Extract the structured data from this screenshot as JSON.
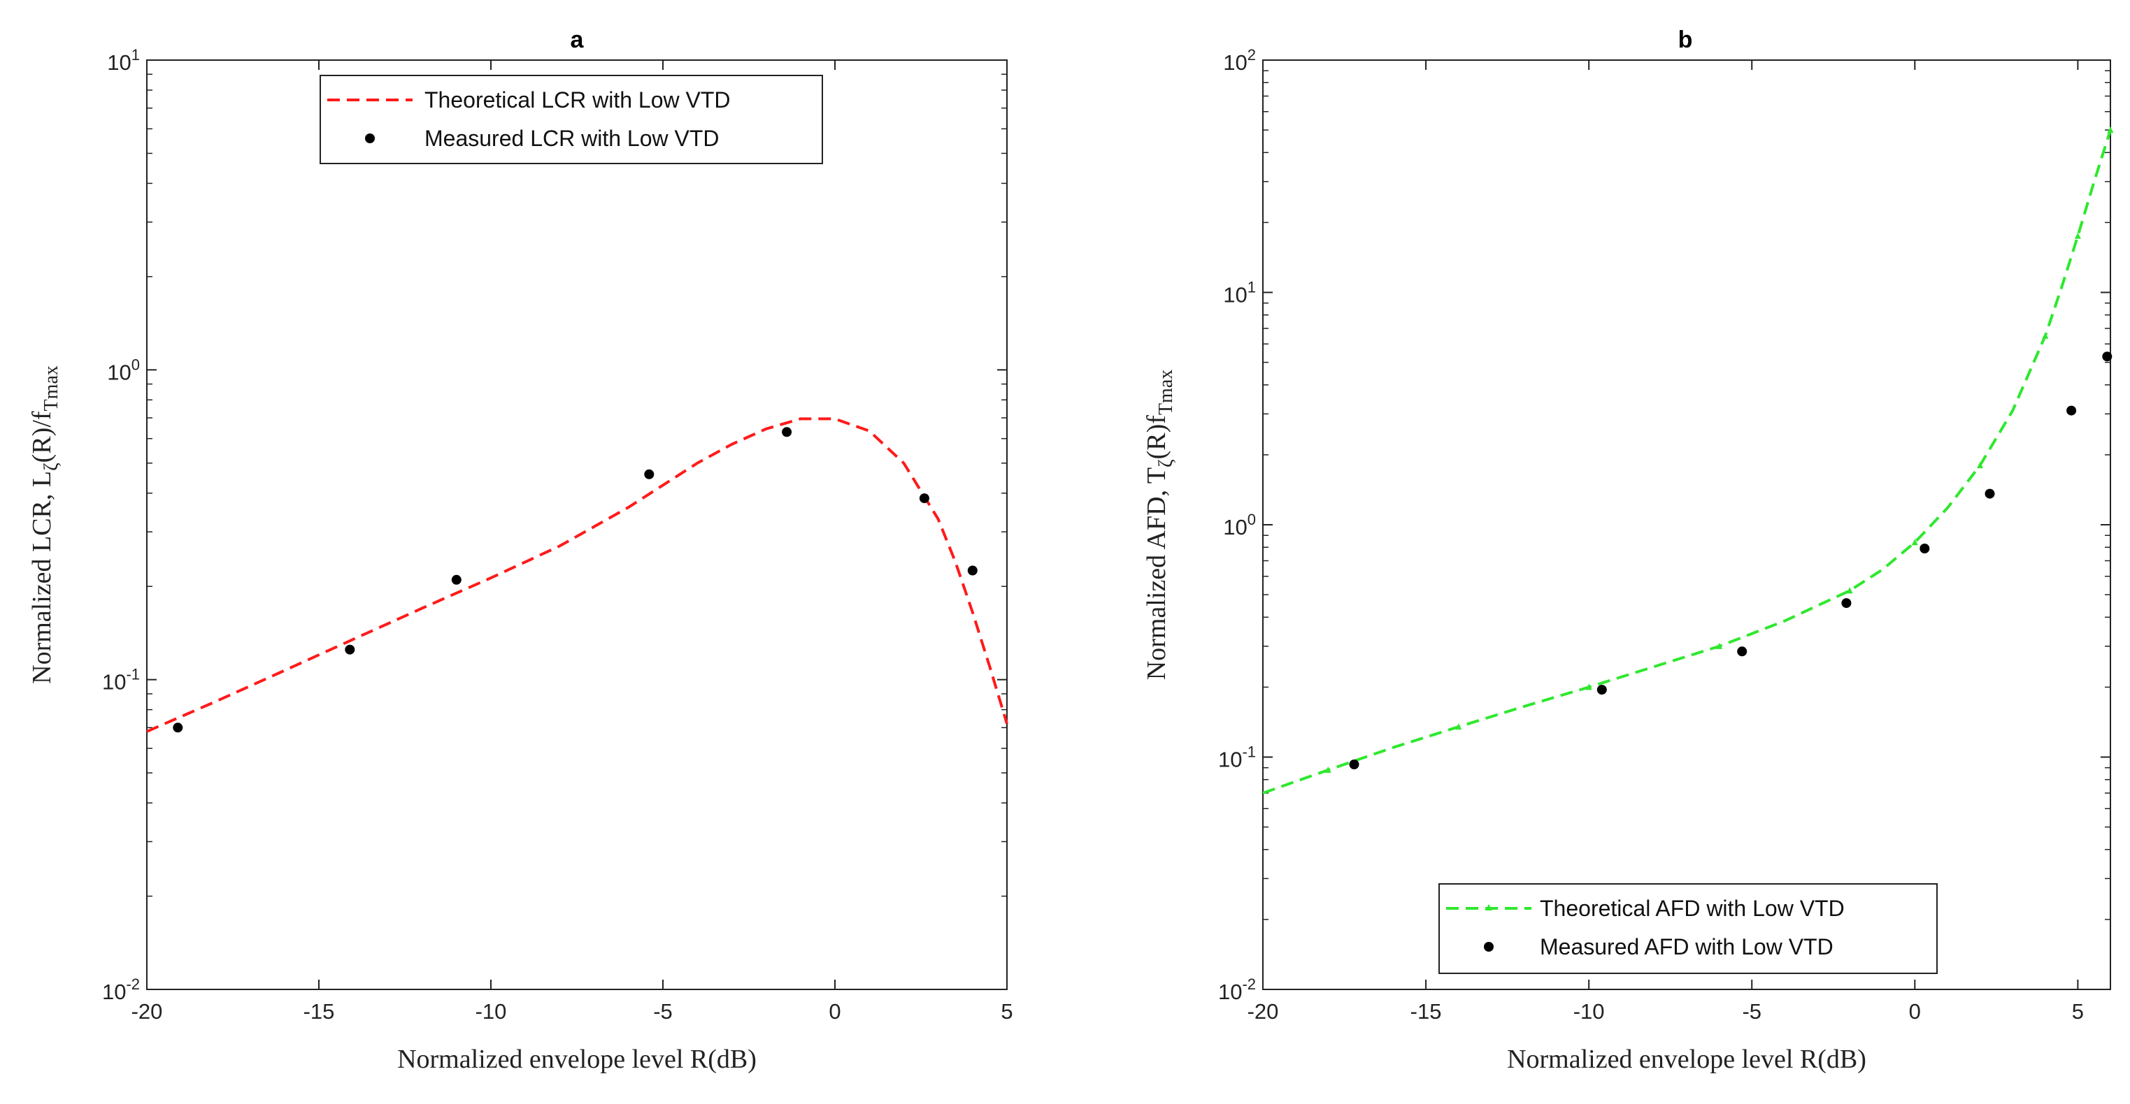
{
  "chart_data": [
    {
      "id": "a",
      "type": "line",
      "title": "a",
      "xlabel": "Normalized envelope level R(dB)",
      "ylabel": {
        "main": "Normalized LCR, L",
        "sub1": "ζ",
        "mid": "(R)/f",
        "sub2": "Tmax"
      },
      "xlim": [
        -20,
        5
      ],
      "ylim_log10": [
        -2,
        1
      ],
      "yscale": "log",
      "xticks": [
        -20,
        -15,
        -10,
        -5,
        0,
        5
      ],
      "xtick_labels": [
        "-20",
        "-15",
        "-10",
        "-5",
        "0",
        "5"
      ],
      "yticks": [
        {
          "base": "10",
          "exp": "-2"
        },
        {
          "base": "10",
          "exp": "-1"
        },
        {
          "base": "10",
          "exp": "0"
        },
        {
          "base": "10",
          "exp": "1"
        }
      ],
      "legend_position": "top-center",
      "series": [
        {
          "name": "Theoretical LCR with Low VTD",
          "style": "dashed-line",
          "color": "#ff1a1a",
          "x": [
            -20,
            -18,
            -16,
            -14,
            -12,
            -10,
            -8,
            -6,
            -4,
            -3,
            -2,
            -1,
            0,
            1,
            2,
            3,
            3.5,
            4,
            4.5,
            5
          ],
          "y": [
            0.068,
            0.085,
            0.107,
            0.135,
            0.17,
            0.213,
            0.27,
            0.36,
            0.5,
            0.575,
            0.645,
            0.695,
            0.695,
            0.635,
            0.5,
            0.33,
            0.24,
            0.165,
            0.11,
            0.072
          ]
        },
        {
          "name": "Measured LCR with Low VTD",
          "style": "markers",
          "color": "#000000",
          "x": [
            -19.1,
            -14.1,
            -11.0,
            -5.4,
            -1.4,
            2.6,
            4.0
          ],
          "y": [
            0.07,
            0.125,
            0.21,
            0.46,
            0.63,
            0.385,
            0.225
          ]
        }
      ]
    },
    {
      "id": "b",
      "type": "line",
      "title": "b",
      "xlabel": "Normalized envelope level R(dB)",
      "ylabel": {
        "main": "Normalized AFD, T",
        "sub1": "ζ",
        "mid": "(R)f",
        "sub2": "Tmax"
      },
      "xlim": [
        -20,
        6
      ],
      "ylim_log10": [
        -2,
        2
      ],
      "yscale": "log",
      "xticks": [
        -20,
        -15,
        -10,
        -5,
        0,
        5
      ],
      "xtick_labels": [
        "-20",
        "-15",
        "-10",
        "-5",
        "0",
        "5"
      ],
      "yticks": [
        {
          "base": "10",
          "exp": "-2"
        },
        {
          "base": "10",
          "exp": "-1"
        },
        {
          "base": "10",
          "exp": "0"
        },
        {
          "base": "10",
          "exp": "1"
        },
        {
          "base": "10",
          "exp": "2"
        }
      ],
      "legend_position": "bottom-center",
      "series": [
        {
          "name": "Theoretical AFD with Low VTD",
          "style": "dashed-line-triangle",
          "color": "#2ee82e",
          "x": [
            -20,
            -18,
            -16,
            -14,
            -12,
            -10,
            -8,
            -6,
            -4,
            -2,
            -1,
            0,
            1,
            2,
            3,
            4,
            4.5,
            5,
            5.5,
            6
          ],
          "y": [
            0.07,
            0.088,
            0.11,
            0.135,
            0.165,
            0.2,
            0.245,
            0.3,
            0.385,
            0.52,
            0.64,
            0.84,
            1.18,
            1.8,
            3.1,
            6.5,
            10.5,
            17.5,
            30,
            50
          ]
        },
        {
          "name": "Measured AFD with Low VTD",
          "style": "markers",
          "color": "#000000",
          "x": [
            -17.2,
            -9.6,
            -5.3,
            -2.1,
            0.3,
            2.3,
            4.8,
            5.9
          ],
          "y": [
            0.093,
            0.195,
            0.285,
            0.46,
            0.79,
            1.36,
            3.1,
            5.3
          ]
        }
      ]
    }
  ]
}
